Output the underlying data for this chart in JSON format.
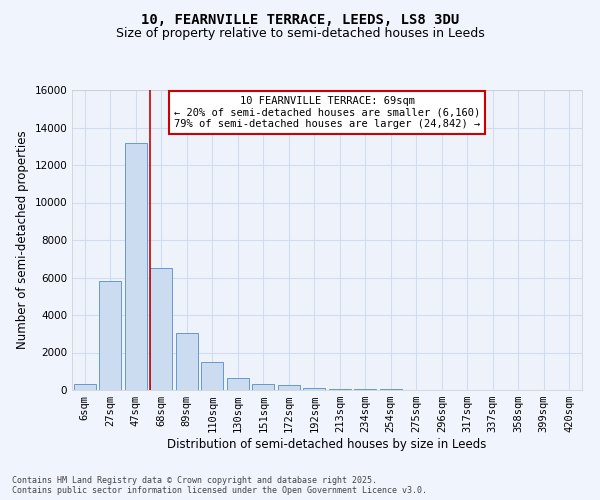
{
  "title_line1": "10, FEARNVILLE TERRACE, LEEDS, LS8 3DU",
  "title_line2": "Size of property relative to semi-detached houses in Leeds",
  "xlabel": "Distribution of semi-detached houses by size in Leeds",
  "ylabel": "Number of semi-detached properties",
  "categories": [
    "6sqm",
    "27sqm",
    "47sqm",
    "68sqm",
    "89sqm",
    "110sqm",
    "130sqm",
    "151sqm",
    "172sqm",
    "192sqm",
    "213sqm",
    "234sqm",
    "254sqm",
    "275sqm",
    "296sqm",
    "317sqm",
    "337sqm",
    "358sqm",
    "399sqm",
    "420sqm"
  ],
  "values": [
    300,
    5800,
    13200,
    6500,
    3050,
    1480,
    620,
    310,
    250,
    130,
    80,
    50,
    30,
    15,
    10,
    5,
    3,
    2,
    1,
    0
  ],
  "bar_color": "#ccdcf0",
  "bar_edge_color": "#6699cc",
  "ylim": [
    0,
    16000
  ],
  "yticks": [
    0,
    2000,
    4000,
    6000,
    8000,
    10000,
    12000,
    14000,
    16000
  ],
  "property_line_bar_index": 3,
  "property_line_color": "#cc0000",
  "annotation_title": "10 FEARNVILLE TERRACE: 69sqm",
  "annotation_line1": "← 20% of semi-detached houses are smaller (6,160)",
  "annotation_line2": "79% of semi-detached houses are larger (24,842) →",
  "annotation_box_color": "#cc0000",
  "footer_line1": "Contains HM Land Registry data © Crown copyright and database right 2025.",
  "footer_line2": "Contains public sector information licensed under the Open Government Licence v3.0.",
  "fig_background": "#f0f4fc",
  "plot_background": "#eef3fb",
  "grid_color": "#d0ddf0",
  "title_fontsize": 10,
  "subtitle_fontsize": 9,
  "axis_label_fontsize": 8.5,
  "tick_fontsize": 7.5,
  "annotation_fontsize": 7.5,
  "footer_fontsize": 6.0
}
